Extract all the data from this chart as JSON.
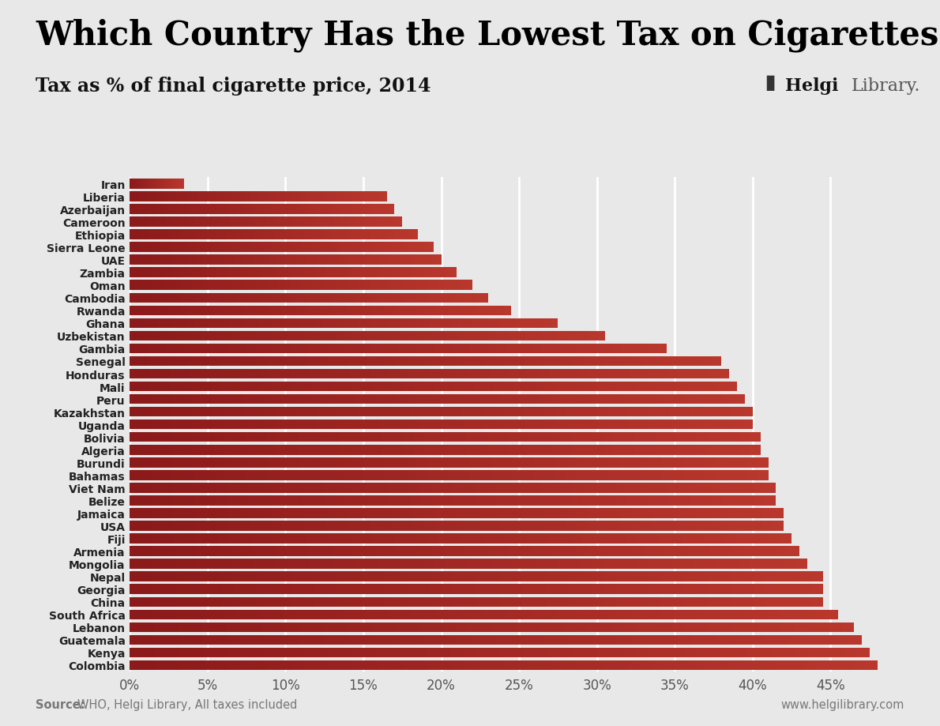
{
  "title": "Which Country Has the Lowest Tax on Cigarettes?",
  "subtitle": "Tax as % of final cigarette price, 2014",
  "source_text": "Source: ",
  "source_text2": "WHO, Helgi Library, All taxes included",
  "website_text": "www.helgilibrary.com",
  "helgi_bold": "Helgi",
  "helgi_light": "Library.",
  "background_color": "#e8e8e8",
  "countries": [
    "Iran",
    "Liberia",
    "Azerbaijan",
    "Cameroon",
    "Ethiopia",
    "Sierra Leone",
    "UAE",
    "Zambia",
    "Oman",
    "Cambodia",
    "Rwanda",
    "Ghana",
    "Uzbekistan",
    "Gambia",
    "Senegal",
    "Honduras",
    "Mali",
    "Peru",
    "Kazakhstan",
    "Uganda",
    "Bolivia",
    "Algeria",
    "Burundi",
    "Bahamas",
    "Viet Nam",
    "Belize",
    "Jamaica",
    "USA",
    "Fiji",
    "Armenia",
    "Mongolia",
    "Nepal",
    "Georgia",
    "China",
    "South Africa",
    "Lebanon",
    "Guatemala",
    "Kenya",
    "Colombia"
  ],
  "values": [
    3.5,
    16.5,
    17.0,
    17.5,
    18.5,
    19.5,
    20.0,
    21.0,
    22.0,
    23.0,
    24.5,
    27.5,
    30.5,
    34.5,
    38.0,
    38.5,
    39.0,
    39.5,
    40.0,
    40.0,
    40.5,
    40.5,
    41.0,
    41.0,
    41.5,
    41.5,
    42.0,
    42.0,
    42.5,
    43.0,
    43.5,
    44.5,
    44.5,
    44.5,
    45.5,
    46.5,
    47.0,
    47.5,
    48.0
  ],
  "xlim": [
    0,
    51
  ],
  "xticks": [
    0,
    5,
    10,
    15,
    20,
    25,
    30,
    35,
    40,
    45
  ],
  "xticklabels": [
    "0%",
    "5%",
    "10%",
    "15%",
    "20%",
    "25%",
    "30%",
    "35%",
    "40%",
    "45%"
  ],
  "title_fontsize": 30,
  "subtitle_fontsize": 17,
  "tick_fontsize": 12,
  "label_fontsize": 10,
  "bar_color_dark": [
    139,
    26,
    26
  ],
  "bar_color_light": [
    185,
    55,
    45
  ]
}
